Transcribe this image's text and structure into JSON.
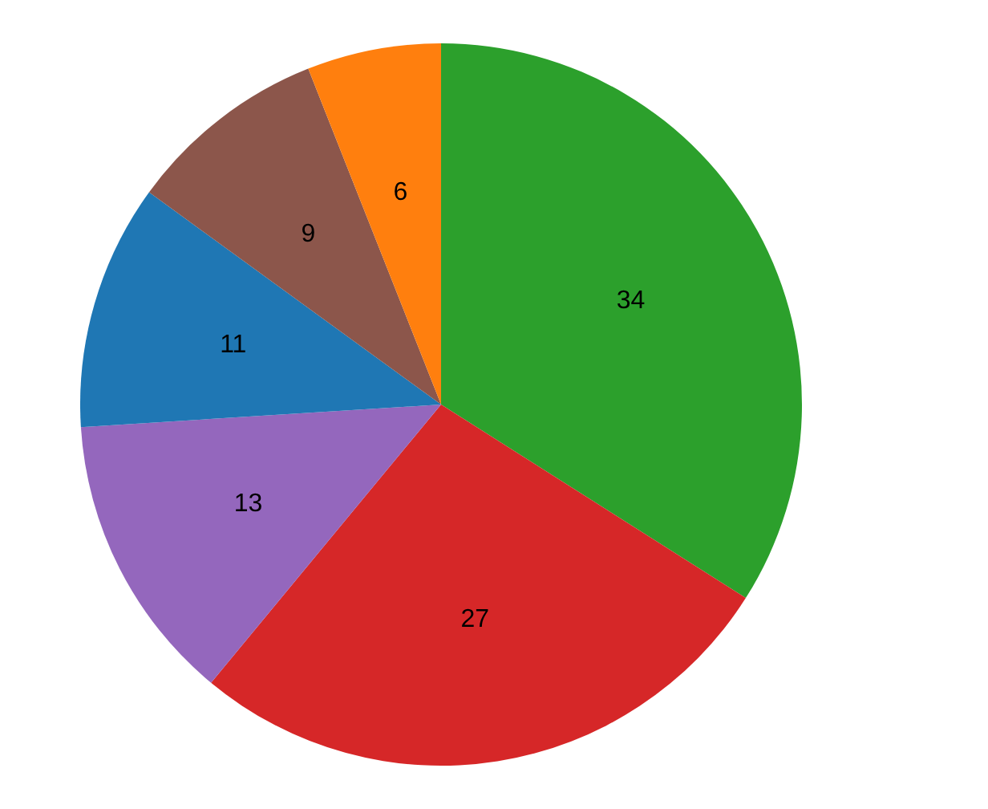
{
  "chart_data": {
    "type": "pie",
    "categories": [
      null,
      null,
      null,
      null,
      null,
      null
    ],
    "values": [
      34,
      27,
      13,
      11,
      9,
      6
    ],
    "colors": [
      "#2ca02c",
      "#d62728",
      "#9467bd",
      "#1f77b4",
      "#8c564b",
      "#ff7f0e"
    ],
    "data_labels": true
  }
}
